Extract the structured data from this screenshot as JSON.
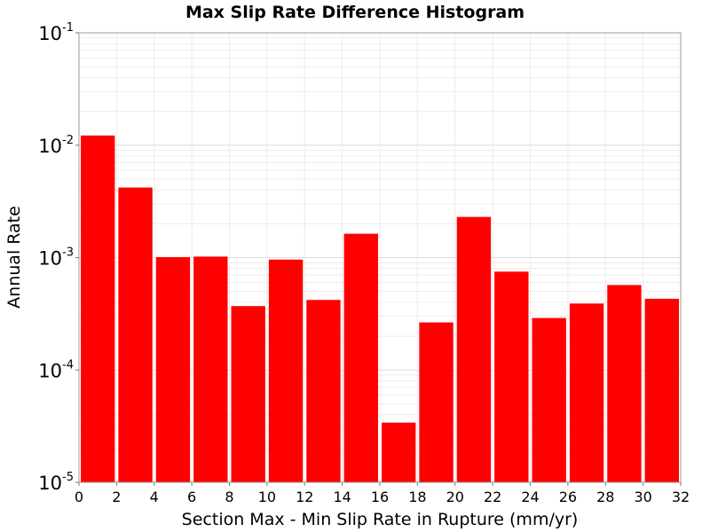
{
  "chart_data": {
    "type": "bar",
    "title": "Max Slip Rate Difference Histogram",
    "xlabel": "Section Max - Min Slip Rate in Rupture (mm/yr)",
    "ylabel": "Annual Rate",
    "xlim": [
      0,
      32
    ],
    "ylim": [
      1e-05,
      0.1
    ],
    "yscale": "log",
    "bar_color": "#ff0000",
    "grid": true,
    "bin_width": 2,
    "bins": [
      {
        "x": 1,
        "value": 0.0122
      },
      {
        "x": 3,
        "value": 0.0042
      },
      {
        "x": 5,
        "value": 0.00101
      },
      {
        "x": 7,
        "value": 0.00102
      },
      {
        "x": 9,
        "value": 0.00037
      },
      {
        "x": 11,
        "value": 0.00096
      },
      {
        "x": 13,
        "value": 0.00042
      },
      {
        "x": 15,
        "value": 0.00163
      },
      {
        "x": 17,
        "value": 3.4e-05
      },
      {
        "x": 19,
        "value": 0.000265
      },
      {
        "x": 21,
        "value": 0.0023
      },
      {
        "x": 23,
        "value": 0.00075
      },
      {
        "x": 25,
        "value": 0.00029
      },
      {
        "x": 27,
        "value": 0.00039
      },
      {
        "x": 29,
        "value": 0.00057
      },
      {
        "x": 31,
        "value": 0.00043
      }
    ],
    "x_ticks": [
      "0",
      "2",
      "4",
      "6",
      "8",
      "10",
      "12",
      "14",
      "16",
      "18",
      "20",
      "22",
      "24",
      "26",
      "28",
      "30",
      "32"
    ],
    "y_ticks": [
      {
        "base": "10",
        "exp": "-5",
        "value": 1e-05
      },
      {
        "base": "10",
        "exp": "-4",
        "value": 0.0001
      },
      {
        "base": "10",
        "exp": "-3",
        "value": 0.001
      },
      {
        "base": "10",
        "exp": "-2",
        "value": 0.01
      },
      {
        "base": "10",
        "exp": "-1",
        "value": 0.1
      }
    ]
  }
}
